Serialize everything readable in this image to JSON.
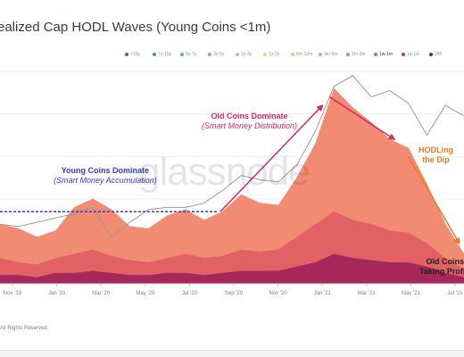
{
  "title": "ealized Cap HODL Waves (Young Coins <1m)",
  "watermark": "glassnode",
  "footer": "All Rights Reserved.",
  "legend": [
    {
      "label": "<10y",
      "color": "#4f5dbd"
    },
    {
      "label": "7y-10y",
      "color": "#3b8fd1"
    },
    {
      "label": "5y-7y",
      "color": "#3cb8c9"
    },
    {
      "label": "3y-5y",
      "color": "#5ec4a0"
    },
    {
      "label": "2y-3y",
      "color": "#a9d37a"
    },
    {
      "label": "1y-2y",
      "color": "#e0e06a"
    },
    {
      "label": "6m-12m",
      "color": "#f2c55c"
    },
    {
      "label": "3m-6m",
      "color": "#f5a35a"
    },
    {
      "label": "1m-3m",
      "color": "#f18058"
    },
    {
      "label": "1w-1m",
      "color": "#e85f4e"
    },
    {
      "label": "1d-1w",
      "color": "#c9384a"
    },
    {
      "label": "24h",
      "color": "#8a1c4e"
    }
  ],
  "annotations": {
    "young_title": "Young Coins Dominate",
    "young_sub": "(Smart Money Accumulation)",
    "old_title": "Old Coins Dominate",
    "old_sub": "(Smart Money Distribution)",
    "hodl_line1": "HODLing",
    "hodl_line2": "the Dip",
    "takeprofit_line1": "Old Coins",
    "takeprofit_line2": "Taking Profi",
    "colors": {
      "young": "#2d3bd6",
      "old": "#e0245e",
      "hodl": "#f07a1a",
      "dark": "#222222"
    }
  },
  "chart_data": {
    "type": "area",
    "title": "ealized Cap HODL Waves (Young Coins <1m)",
    "x_tick_labels": [
      "Nov '19",
      "Jan '20",
      "Mar '20",
      "May '20",
      "Jul '20",
      "Sep '20",
      "Nov '20",
      "Jan '21",
      "Mar '21",
      "May '21",
      "Jul '21"
    ],
    "x": [
      0,
      4,
      8,
      12,
      16,
      20,
      24,
      28,
      32,
      36,
      40,
      44,
      48,
      52,
      56,
      60,
      64,
      68,
      72,
      76,
      80,
      84,
      88,
      92,
      96,
      100
    ],
    "x_note": "x values are percent of the plotted time span from late Oct 2019 to early Aug 2021",
    "ylim": [
      0,
      100
    ],
    "series": [
      {
        "name": "1w-1m",
        "color": "#f0866a",
        "values": [
          28,
          26,
          22,
          25,
          36,
          40,
          35,
          27,
          26,
          32,
          35,
          30,
          34,
          42,
          38,
          37,
          50,
          66,
          92,
          83,
          76,
          68,
          64,
          47,
          28,
          14
        ]
      },
      {
        "name": "1d-1w",
        "color": "#e05f63",
        "values": [
          12,
          10,
          9,
          12,
          14,
          16,
          13,
          11,
          10,
          12,
          14,
          12,
          13,
          16,
          15,
          16,
          22,
          28,
          34,
          30,
          28,
          25,
          24,
          19,
          12,
          7
        ]
      },
      {
        "name": "24h",
        "color": "#a3245a",
        "values": [
          4,
          4,
          3,
          5,
          5,
          6,
          5,
          4,
          4,
          5,
          5,
          4,
          5,
          6,
          6,
          6,
          8,
          10,
          14,
          12,
          11,
          10,
          10,
          8,
          5,
          3
        ]
      },
      {
        "name": "price",
        "color": "#9a9a9a",
        "values": [
          28,
          27,
          29,
          31,
          33,
          36,
          22,
          29,
          35,
          36,
          36,
          38,
          44,
          51,
          49,
          48,
          56,
          72,
          93,
          98,
          88,
          91,
          85,
          70,
          84,
          79
        ]
      }
    ],
    "reference_level": 34,
    "arrows": [
      {
        "from_x": 47.5,
        "from_y": 34,
        "to_x": 69.5,
        "to_y": 84
      },
      {
        "from_x": 71,
        "from_y": 88,
        "to_x": 85,
        "to_y": 68
      },
      {
        "from_x": 88,
        "from_y": 60,
        "to_x": 99,
        "to_y": 19
      }
    ]
  }
}
